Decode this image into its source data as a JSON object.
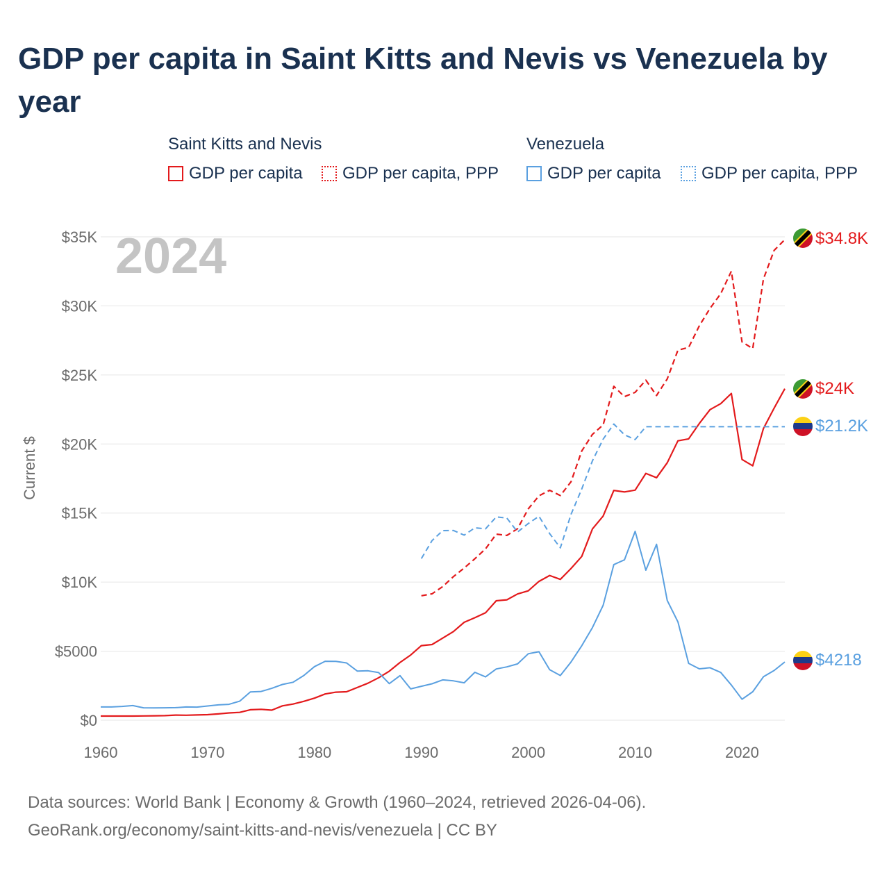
{
  "title": "GDP per capita in Saint Kitts and Nevis vs Venezuela by year",
  "legend": {
    "group1": "Saint Kitts and Nevis",
    "group2": "Venezuela",
    "item1": "GDP per capita",
    "item2": "GDP per capita, PPP",
    "item3": "GDP per capita",
    "item4": "GDP per capita, PPP"
  },
  "footer": {
    "line1": "Data sources: World Bank | Economy & Growth (1960–2024, retrieved 2026-04-06).",
    "line2": "GeoRank.org/economy/saint-kitts-and-nevis/venezuela | CC BY"
  },
  "colors": {
    "kn": "#e31a1c",
    "ve": "#5aa0e0"
  },
  "chart_data": {
    "type": "line",
    "title": "GDP per capita in Saint Kitts and Nevis vs Venezuela by year",
    "ylabel": "Current $",
    "xlabel": "",
    "year_label": "2024",
    "xlim": [
      1960,
      2024
    ],
    "ylim": [
      0,
      35000
    ],
    "x_ticks": [
      1960,
      1970,
      1980,
      1990,
      2000,
      2010,
      2020
    ],
    "y_ticks": [
      0,
      5000,
      10000,
      15000,
      20000,
      25000,
      30000,
      35000
    ],
    "y_tick_labels": [
      "$0",
      "$5000",
      "$10K",
      "$15K",
      "$20K",
      "$25K",
      "$30K",
      "$35K"
    ],
    "end_labels": {
      "kn_ppp": "$34.8K",
      "kn_gdp": "$24K",
      "ve_ppp": "$21.2K",
      "ve_gdp": "$4218"
    },
    "series": [
      {
        "name": "Saint Kitts and Nevis GDP per capita",
        "key": "kn_gdp",
        "style": "solid",
        "start_year": 1960,
        "values": [
          300,
          300,
          300,
          300,
          310,
          320,
          330,
          370,
          360,
          380,
          400,
          460,
          530,
          570,
          760,
          790,
          730,
          1040,
          1170,
          1370,
          1600,
          1900,
          2030,
          2060,
          2370,
          2680,
          3080,
          3550,
          4180,
          4720,
          5400,
          5480,
          5950,
          6420,
          7090,
          7420,
          7780,
          8650,
          8720,
          9140,
          9370,
          10050,
          10480,
          10200,
          10990,
          11860,
          13850,
          14780,
          16640,
          16530,
          16660,
          17870,
          17560,
          18640,
          20230,
          20370,
          21490,
          22490,
          22920,
          23660,
          18880,
          18420,
          21120,
          22600,
          24000
        ]
      },
      {
        "name": "Saint Kitts and Nevis GDP per capita, PPP",
        "key": "kn_ppp",
        "style": "dashed",
        "start_year": 1990,
        "values": [
          9010,
          9150,
          9680,
          10400,
          11020,
          11690,
          12410,
          13470,
          13380,
          13870,
          15300,
          16250,
          16650,
          16270,
          17270,
          19490,
          20700,
          21380,
          24180,
          23430,
          23740,
          24620,
          23510,
          24710,
          26800,
          26990,
          28560,
          29820,
          30880,
          32510,
          27390,
          26910,
          31950,
          34020,
          34800
        ]
      },
      {
        "name": "Venezuela GDP per capita",
        "key": "ve_gdp",
        "style": "solid",
        "start_year": 1960,
        "values": [
          960,
          960,
          1000,
          1060,
          900,
          890,
          900,
          910,
          960,
          950,
          1030,
          1110,
          1150,
          1380,
          2050,
          2080,
          2310,
          2590,
          2750,
          3240,
          3880,
          4270,
          4260,
          4150,
          3560,
          3580,
          3450,
          2650,
          3230,
          2270,
          2460,
          2640,
          2920,
          2850,
          2710,
          3470,
          3140,
          3710,
          3860,
          4080,
          4810,
          4960,
          3660,
          3240,
          4220,
          5390,
          6710,
          8320,
          11270,
          11610,
          13680,
          10860,
          12740,
          8670,
          7120,
          4120,
          3720,
          3800,
          3460,
          2550,
          1520,
          2060,
          3150,
          3600,
          4218
        ]
      },
      {
        "name": "Venezuela GDP per capita, PPP",
        "key": "ve_ppp",
        "style": "dashed",
        "start_year": 1990,
        "values": [
          11700,
          13010,
          13730,
          13740,
          13400,
          13930,
          13860,
          14720,
          14640,
          13630,
          14240,
          14770,
          13510,
          12480,
          14910,
          16740,
          18780,
          20350,
          21450,
          20670,
          20320,
          21250,
          21250,
          21250,
          21250,
          21250,
          21250,
          21250,
          21250,
          21250,
          21250,
          21250,
          21250,
          21250,
          21250
        ]
      }
    ]
  }
}
